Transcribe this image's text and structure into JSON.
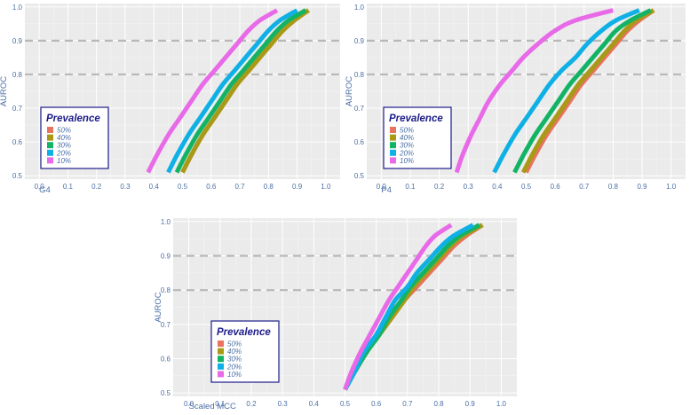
{
  "chart_data": [
    {
      "type": "line",
      "xlabel": "G4",
      "ylabel": "AUROC",
      "xlim": [
        -0.05,
        1.05
      ],
      "ylim": [
        0.49,
        1.01
      ],
      "x_ticks": [
        "0.0",
        "0.1",
        "0.2",
        "0.3",
        "0.4",
        "0.5",
        "0.6",
        "0.7",
        "0.8",
        "0.9",
        "1.0"
      ],
      "y_ticks": [
        "0.5",
        "0.6",
        "0.7",
        "0.8",
        "0.9",
        "1.0"
      ],
      "reference_lines": [
        0.8,
        0.9
      ],
      "legend": {
        "title": "Prevalence",
        "position": "bottom-left"
      },
      "series": [
        {
          "name": "50%",
          "color": "#e8735f",
          "x": [
            0.5,
            0.53,
            0.57,
            0.61,
            0.65,
            0.69,
            0.73,
            0.77,
            0.81,
            0.85,
            0.89,
            0.94
          ],
          "y": [
            0.51,
            0.56,
            0.62,
            0.67,
            0.72,
            0.77,
            0.81,
            0.85,
            0.89,
            0.93,
            0.96,
            0.99
          ]
        },
        {
          "name": "40%",
          "color": "#a89a16",
          "x": [
            0.5,
            0.53,
            0.57,
            0.61,
            0.65,
            0.69,
            0.73,
            0.77,
            0.81,
            0.85,
            0.89,
            0.94
          ],
          "y": [
            0.51,
            0.56,
            0.62,
            0.67,
            0.72,
            0.77,
            0.81,
            0.85,
            0.89,
            0.93,
            0.96,
            0.99
          ]
        },
        {
          "name": "30%",
          "color": "#13b366",
          "x": [
            0.48,
            0.51,
            0.55,
            0.59,
            0.63,
            0.67,
            0.71,
            0.75,
            0.79,
            0.83,
            0.87,
            0.93
          ],
          "y": [
            0.51,
            0.56,
            0.62,
            0.67,
            0.72,
            0.77,
            0.81,
            0.85,
            0.89,
            0.93,
            0.96,
            0.99
          ]
        },
        {
          "name": "20%",
          "color": "#0fb0e6",
          "x": [
            0.45,
            0.48,
            0.52,
            0.56,
            0.6,
            0.64,
            0.68,
            0.72,
            0.76,
            0.8,
            0.84,
            0.9
          ],
          "y": [
            0.51,
            0.56,
            0.62,
            0.67,
            0.72,
            0.77,
            0.81,
            0.85,
            0.89,
            0.93,
            0.96,
            0.99
          ]
        },
        {
          "name": "10%",
          "color": "#e86ae8",
          "x": [
            0.38,
            0.41,
            0.45,
            0.49,
            0.53,
            0.57,
            0.61,
            0.65,
            0.69,
            0.73,
            0.77,
            0.83
          ],
          "y": [
            0.51,
            0.56,
            0.62,
            0.67,
            0.72,
            0.77,
            0.81,
            0.85,
            0.89,
            0.93,
            0.96,
            0.99
          ]
        }
      ]
    },
    {
      "type": "line",
      "xlabel": "P4",
      "ylabel": "AUROC",
      "xlim": [
        -0.05,
        1.05
      ],
      "ylim": [
        0.49,
        1.01
      ],
      "x_ticks": [
        "0.0",
        "0.1",
        "0.2",
        "0.3",
        "0.4",
        "0.5",
        "0.6",
        "0.7",
        "0.8",
        "0.9",
        "1.0"
      ],
      "y_ticks": [
        "0.5",
        "0.6",
        "0.7",
        "0.8",
        "0.9",
        "1.0"
      ],
      "reference_lines": [
        0.8,
        0.9
      ],
      "legend": {
        "title": "Prevalence",
        "position": "bottom-left"
      },
      "series": [
        {
          "name": "50%",
          "color": "#e8735f",
          "x": [
            0.5,
            0.53,
            0.57,
            0.61,
            0.65,
            0.69,
            0.73,
            0.77,
            0.81,
            0.85,
            0.89,
            0.94
          ],
          "y": [
            0.51,
            0.56,
            0.62,
            0.67,
            0.72,
            0.77,
            0.81,
            0.85,
            0.89,
            0.93,
            0.96,
            0.99
          ]
        },
        {
          "name": "40%",
          "color": "#a89a16",
          "x": [
            0.49,
            0.52,
            0.56,
            0.6,
            0.64,
            0.68,
            0.72,
            0.76,
            0.8,
            0.84,
            0.88,
            0.94
          ],
          "y": [
            0.51,
            0.56,
            0.62,
            0.67,
            0.72,
            0.77,
            0.81,
            0.85,
            0.89,
            0.93,
            0.96,
            0.99
          ]
        },
        {
          "name": "30%",
          "color": "#13b366",
          "x": [
            0.46,
            0.49,
            0.53,
            0.57,
            0.61,
            0.65,
            0.69,
            0.73,
            0.77,
            0.81,
            0.86,
            0.93
          ],
          "y": [
            0.51,
            0.56,
            0.62,
            0.67,
            0.72,
            0.77,
            0.81,
            0.85,
            0.89,
            0.93,
            0.96,
            0.99
          ]
        },
        {
          "name": "20%",
          "color": "#0fb0e6",
          "x": [
            0.39,
            0.42,
            0.46,
            0.5,
            0.54,
            0.58,
            0.62,
            0.67,
            0.71,
            0.76,
            0.81,
            0.89
          ],
          "y": [
            0.51,
            0.56,
            0.62,
            0.67,
            0.72,
            0.77,
            0.81,
            0.85,
            0.89,
            0.93,
            0.96,
            0.99
          ]
        },
        {
          "name": "10%",
          "color": "#e86ae8",
          "x": [
            0.26,
            0.28,
            0.31,
            0.34,
            0.37,
            0.41,
            0.45,
            0.49,
            0.54,
            0.6,
            0.67,
            0.8
          ],
          "y": [
            0.51,
            0.56,
            0.62,
            0.67,
            0.72,
            0.77,
            0.81,
            0.85,
            0.89,
            0.93,
            0.96,
            0.99
          ]
        }
      ]
    },
    {
      "type": "line",
      "xlabel": "Scaled MCC",
      "ylabel": "AUROC",
      "xlim": [
        -0.05,
        1.05
      ],
      "ylim": [
        0.49,
        1.01
      ],
      "x_ticks": [
        "0.0",
        "0.1",
        "0.2",
        "0.3",
        "0.4",
        "0.5",
        "0.6",
        "0.7",
        "0.8",
        "0.9",
        "1.0"
      ],
      "y_ticks": [
        "0.5",
        "0.6",
        "0.7",
        "0.8",
        "0.9",
        "1.0"
      ],
      "reference_lines": [
        0.8,
        0.9
      ],
      "legend": {
        "title": "Prevalence",
        "position": "bottom-left"
      },
      "series": [
        {
          "name": "50%",
          "color": "#e8735f",
          "x": [
            0.5,
            0.53,
            0.57,
            0.61,
            0.65,
            0.69,
            0.73,
            0.77,
            0.81,
            0.85,
            0.89,
            0.94
          ],
          "y": [
            0.51,
            0.56,
            0.62,
            0.67,
            0.72,
            0.77,
            0.81,
            0.85,
            0.89,
            0.93,
            0.96,
            0.99
          ]
        },
        {
          "name": "40%",
          "color": "#a89a16",
          "x": [
            0.5,
            0.53,
            0.57,
            0.61,
            0.65,
            0.69,
            0.72,
            0.76,
            0.8,
            0.84,
            0.88,
            0.94
          ],
          "y": [
            0.51,
            0.56,
            0.62,
            0.67,
            0.72,
            0.77,
            0.81,
            0.85,
            0.89,
            0.93,
            0.96,
            0.99
          ]
        },
        {
          "name": "30%",
          "color": "#13b366",
          "x": [
            0.5,
            0.53,
            0.57,
            0.61,
            0.64,
            0.68,
            0.71,
            0.75,
            0.79,
            0.83,
            0.87,
            0.93
          ],
          "y": [
            0.51,
            0.56,
            0.62,
            0.67,
            0.72,
            0.77,
            0.81,
            0.85,
            0.89,
            0.93,
            0.96,
            0.99
          ]
        },
        {
          "name": "20%",
          "color": "#0fb0e6",
          "x": [
            0.5,
            0.53,
            0.56,
            0.6,
            0.63,
            0.66,
            0.7,
            0.73,
            0.77,
            0.81,
            0.85,
            0.91
          ],
          "y": [
            0.51,
            0.56,
            0.62,
            0.67,
            0.72,
            0.77,
            0.81,
            0.85,
            0.89,
            0.93,
            0.96,
            0.99
          ]
        },
        {
          "name": "10%",
          "color": "#e86ae8",
          "x": [
            0.5,
            0.52,
            0.55,
            0.58,
            0.61,
            0.64,
            0.67,
            0.7,
            0.73,
            0.76,
            0.79,
            0.84
          ],
          "y": [
            0.51,
            0.56,
            0.62,
            0.67,
            0.72,
            0.77,
            0.81,
            0.85,
            0.89,
            0.93,
            0.96,
            0.99
          ]
        }
      ]
    }
  ]
}
